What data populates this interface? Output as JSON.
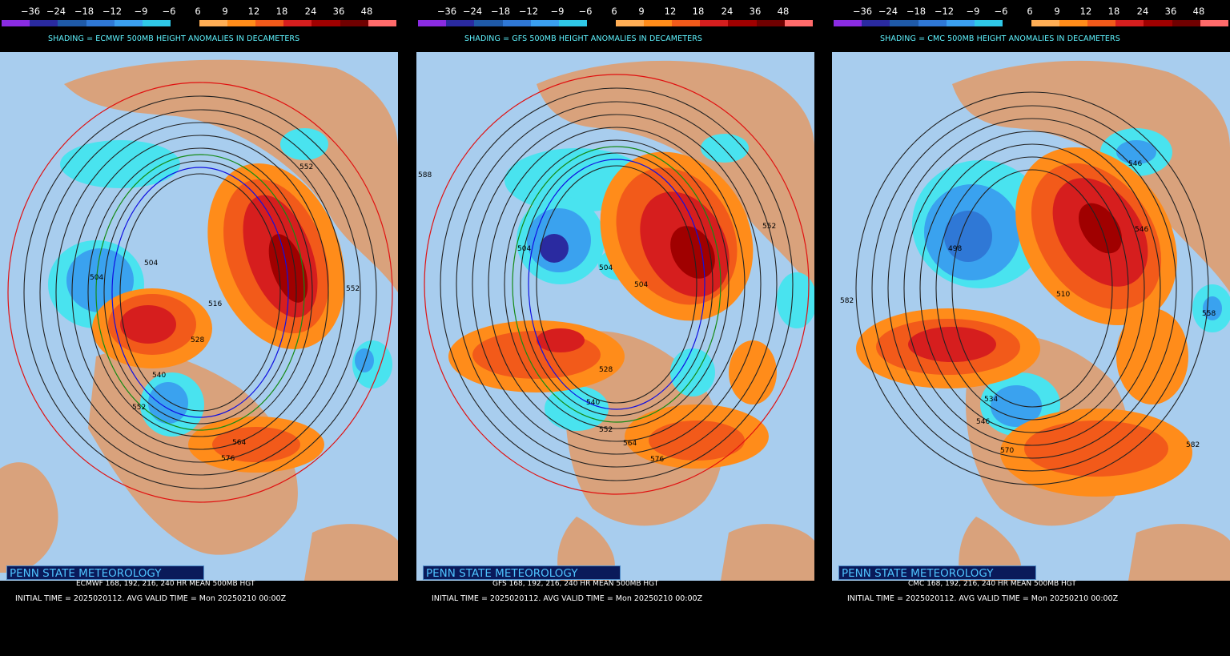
{
  "colorbar": {
    "labels": [
      "−36",
      "−24",
      "−18",
      "−12",
      "−9",
      "−6",
      "6",
      "9",
      "12",
      "18",
      "24",
      "36",
      "48"
    ],
    "colors": [
      "#8a2be2",
      "#2a2aa0",
      "#1f5aa8",
      "#2f78d6",
      "#3a9ff0",
      "#2fc8e8",
      "#000000",
      "#ffae55",
      "#ff8c1a",
      "#f25a1a",
      "#d61e1e",
      "#a00000",
      "#700000",
      "#ff6a6a"
    ]
  },
  "panels": [
    {
      "shading": "SHADING = ECMWF 500MB HEIGHT ANOMALIES IN DECAMETERS",
      "brand": "PENN STATE METEOROLOGY",
      "subtitle": "ECMWF 168, 192, 216, 240 HR MEAN 500MB HGT",
      "initial": "INITIAL TIME = 2025020112. AVG VALID TIME = Mon 20250210 00:00Z",
      "contour_labels": [
        "504",
        "504",
        "516",
        "528",
        "540",
        "552",
        "564",
        "576",
        "552",
        "552"
      ]
    },
    {
      "shading": "SHADING = GFS 500MB HEIGHT ANOMALIES IN DECAMETERS",
      "brand": "PENN STATE METEOROLOGY",
      "subtitle": "GFS 168, 192, 216, 240 HR MEAN 500MB HGT",
      "initial": "INITIAL TIME = 2025020112. AVG VALID TIME = Mon 20250210 00:00Z",
      "contour_labels": [
        "588",
        "504",
        "504",
        "504",
        "540",
        "552",
        "564",
        "576",
        "528",
        "552"
      ]
    },
    {
      "shading": "SHADING = CMC 500MB HEIGHT ANOMALIES IN DECAMETERS",
      "brand": "PENN STATE METEOROLOGY",
      "subtitle": "CMC 168, 192, 216, 240 HR MEAN 500MB HGT",
      "initial": "INITIAL TIME = 2025020112. AVG VALID TIME = Mon 20250210 00:00Z",
      "contour_labels": [
        "546",
        "498",
        "510",
        "546",
        "558",
        "582",
        "534",
        "546",
        "570",
        "582"
      ]
    }
  ]
}
